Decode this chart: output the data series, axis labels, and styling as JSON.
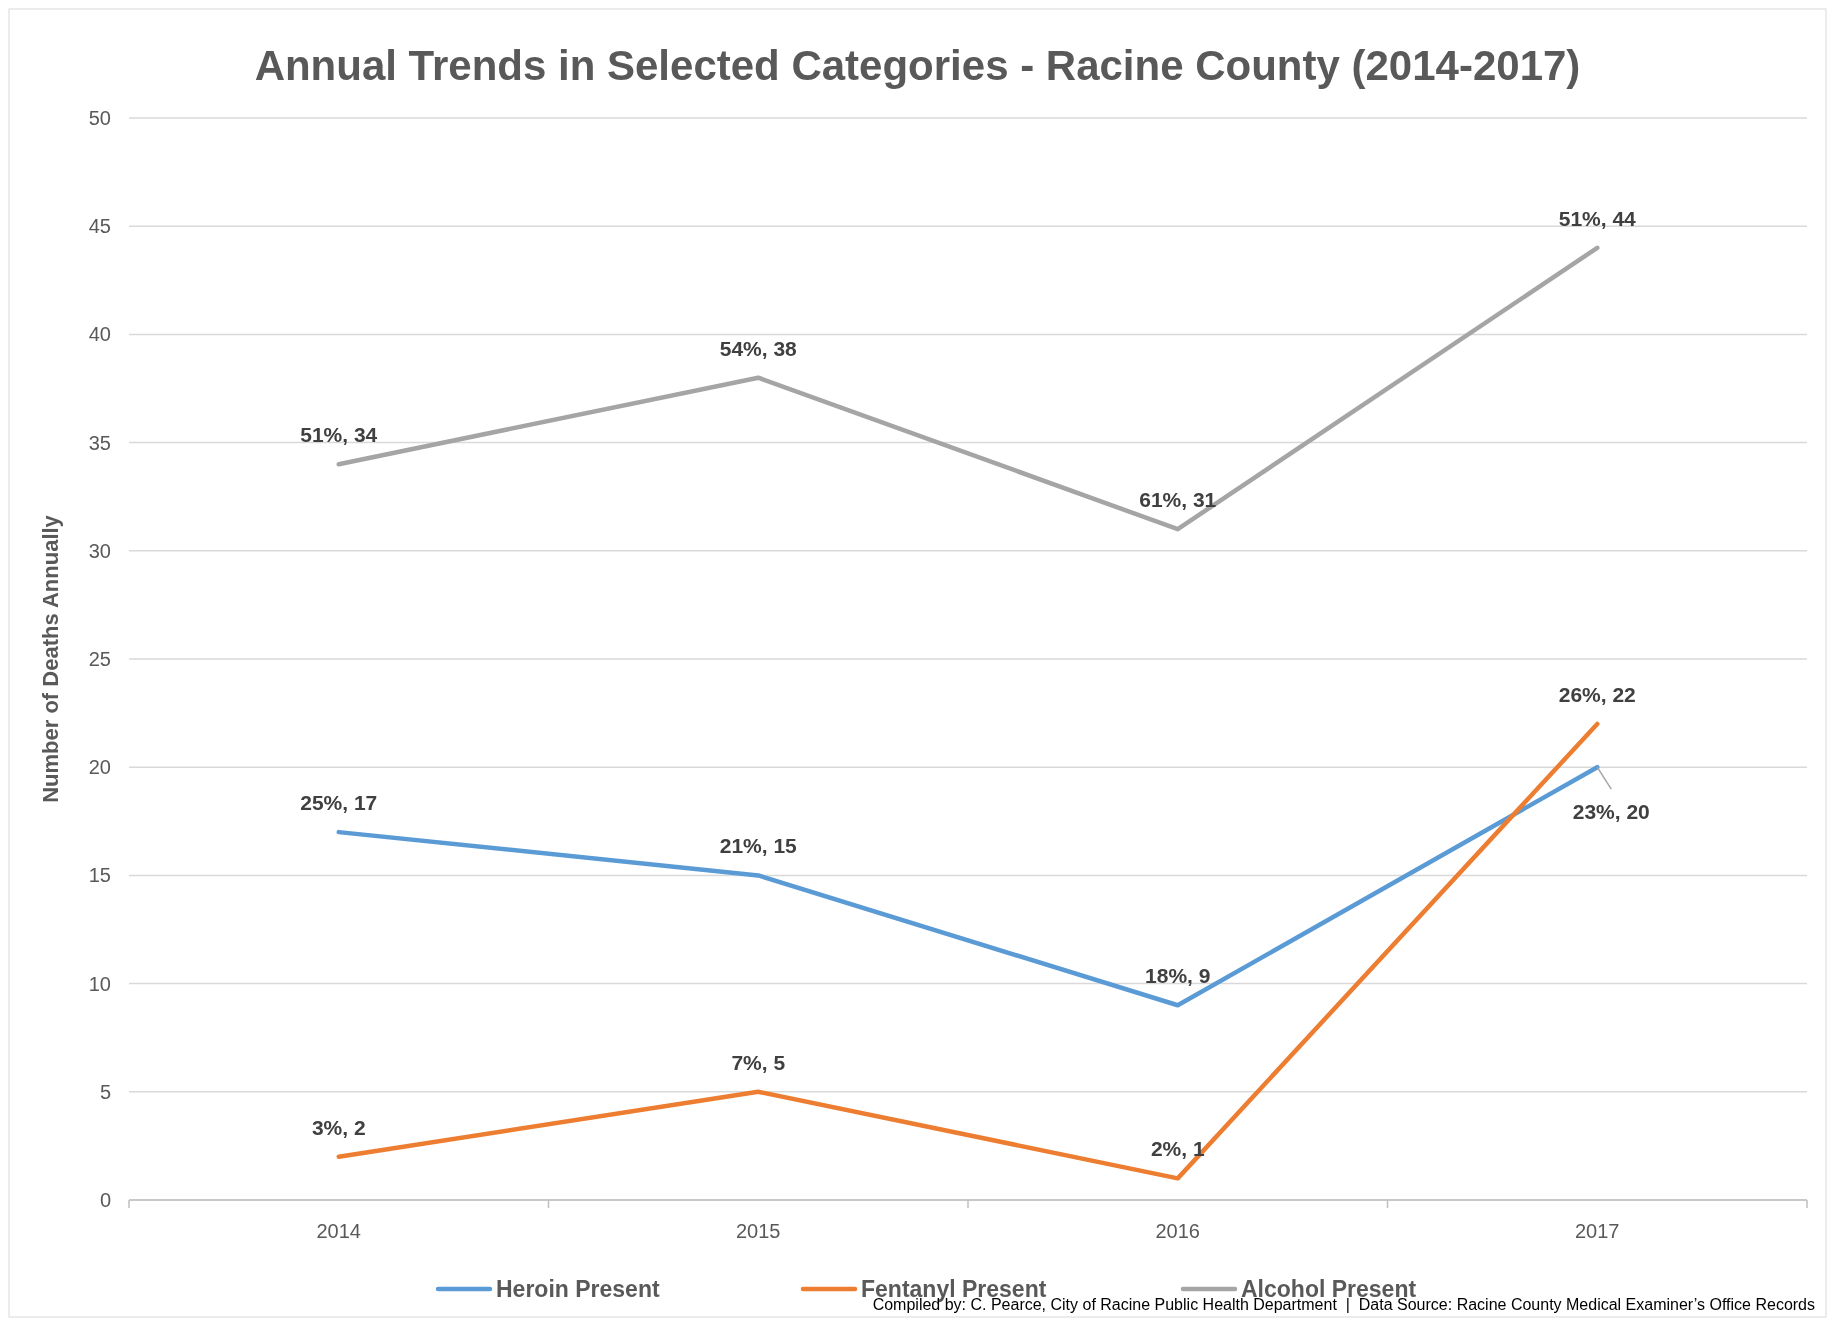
{
  "chart_data": {
    "type": "line",
    "title": "Annual Trends in Selected Categories - Racine County (2014-2017)",
    "ylabel": "Number of Deaths Annually",
    "categories": [
      "2014",
      "2015",
      "2016",
      "2017"
    ],
    "ylim": [
      0,
      50
    ],
    "yticks": [
      0,
      5,
      10,
      15,
      20,
      25,
      30,
      35,
      40,
      45,
      50
    ],
    "grid": "y",
    "legend": "bottom",
    "marker": "none",
    "line_style": "solid",
    "series": [
      {
        "name": "Heroin Present",
        "color": "#5b9bd5",
        "values": [
          17,
          15,
          9,
          20
        ],
        "value_labels": [
          "25%, 17",
          "21%, 15",
          "18%, 9",
          "23%, 20"
        ]
      },
      {
        "name": "Fentanyl Present",
        "color": "#ed7d31",
        "values": [
          2,
          5,
          1,
          22
        ],
        "value_labels": [
          "3%, 2",
          "7%, 5",
          "2%, 1",
          "26%, 22"
        ]
      },
      {
        "name": "Alcohol Present",
        "color": "#a5a5a5",
        "values": [
          34,
          38,
          31,
          44
        ],
        "value_labels": [
          "51%, 34",
          "54%, 38",
          "61%, 31",
          "51%, 44"
        ]
      }
    ],
    "annotations": [
      "Compiled by: C. Pearce, City of Racine Public Health Department  |  Data Source: Racine County Medical Examiner’s Office Records"
    ]
  }
}
